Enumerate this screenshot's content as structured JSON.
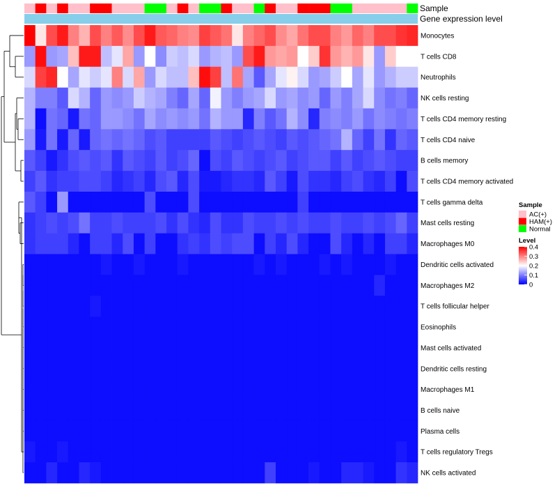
{
  "chart_data": {
    "type": "heatmap",
    "annotation_labels": [
      "Sample",
      "Gene expression level"
    ],
    "rows": [
      "Monocytes",
      "T cells CD8",
      "Neutrophils",
      "NK cells resting",
      "T cells CD4 memory resting",
      "T cells CD4 naive",
      "B cells memory",
      "T cells CD4 memory activated",
      "T cells gamma delta",
      "Mast cells resting",
      "Macrophages M0",
      "Dendritic cells activated",
      "Macrophages M2",
      "T cells follicular helper",
      "Eosinophils",
      "Mast cells activated",
      "Dendritic cells resting",
      "Macrophages M1",
      "B cells naive",
      "Plasma cells",
      "T cells regulatory  Tregs",
      "NK cells activated"
    ],
    "sample_groups": [
      "AC(+)",
      "HAM(+)",
      "AC(+)",
      "HAM(+)",
      "AC(+)",
      "AC(+)",
      "HAM(+)",
      "HAM(+)",
      "AC(+)",
      "AC(+)",
      "AC(+)",
      "Normal",
      "Normal",
      "AC(+)",
      "HAM(+)",
      "AC(+)",
      "Normal",
      "Normal",
      "HAM(+)",
      "AC(+)",
      "AC(+)",
      "Normal",
      "HAM(+)",
      "AC(+)",
      "AC(+)",
      "HAM(+)",
      "HAM(+)",
      "HAM(+)",
      "Normal",
      "Normal",
      "AC(+)",
      "AC(+)",
      "AC(+)",
      "AC(+)",
      "AC(+)",
      "Normal"
    ],
    "values": [
      [
        0.4,
        0.22,
        0.34,
        0.38,
        0.3,
        0.26,
        0.34,
        0.3,
        0.33,
        0.29,
        0.34,
        0.38,
        0.33,
        0.32,
        0.3,
        0.29,
        0.35,
        0.33,
        0.31,
        0.22,
        0.3,
        0.32,
        0.34,
        0.29,
        0.27,
        0.31,
        0.34,
        0.34,
        0.3,
        0.28,
        0.32,
        0.3,
        0.34,
        0.34,
        0.36,
        0.37
      ],
      [
        0.12,
        0.39,
        0.12,
        0.13,
        0.25,
        0.38,
        0.38,
        0.15,
        0.18,
        0.27,
        0.12,
        0.2,
        0.11,
        0.16,
        0.15,
        0.17,
        0.12,
        0.14,
        0.15,
        0.12,
        0.34,
        0.38,
        0.28,
        0.27,
        0.28,
        0.2,
        0.24,
        0.36,
        0.28,
        0.26,
        0.28,
        0.22,
        0.12,
        0.24,
        0.2,
        0.2
      ],
      [
        0.17,
        0.35,
        0.37,
        0.2,
        0.13,
        0.18,
        0.16,
        0.18,
        0.3,
        0.17,
        0.27,
        0.12,
        0.17,
        0.15,
        0.15,
        0.25,
        0.39,
        0.35,
        0.15,
        0.31,
        0.13,
        0.07,
        0.13,
        0.18,
        0.21,
        0.17,
        0.12,
        0.13,
        0.16,
        0.2,
        0.13,
        0.18,
        0.12,
        0.14,
        0.16,
        0.16
      ],
      [
        0.14,
        0.1,
        0.1,
        0.07,
        0.17,
        0.14,
        0.08,
        0.12,
        0.11,
        0.12,
        0.16,
        0.14,
        0.13,
        0.1,
        0.08,
        0.13,
        0.08,
        0.19,
        0.12,
        0.1,
        0.12,
        0.13,
        0.17,
        0.12,
        0.13,
        0.11,
        0.12,
        0.08,
        0.12,
        0.1,
        0.13,
        0.17,
        0.11,
        0.09,
        0.1,
        0.08
      ],
      [
        0.14,
        0.01,
        0.09,
        0.08,
        0.02,
        0.09,
        0.08,
        0.12,
        0.12,
        0.11,
        0.09,
        0.13,
        0.11,
        0.12,
        0.11,
        0.12,
        0.09,
        0.14,
        0.12,
        0.12,
        0.03,
        0.1,
        0.07,
        0.09,
        0.14,
        0.11,
        0.03,
        0.1,
        0.11,
        0.1,
        0.12,
        0.09,
        0.11,
        0.1,
        0.09,
        0.1
      ],
      [
        0.12,
        0.02,
        0.09,
        0.02,
        0.08,
        0.02,
        0.08,
        0.09,
        0.08,
        0.09,
        0.08,
        0.06,
        0.07,
        0.05,
        0.05,
        0.05,
        0.05,
        0.07,
        0.06,
        0.05,
        0.06,
        0.07,
        0.06,
        0.05,
        0.07,
        0.06,
        0.07,
        0.08,
        0.09,
        0.14,
        0.08,
        0.05,
        0.09,
        0.04,
        0.08,
        0.07
      ],
      [
        0.07,
        0.05,
        0.02,
        0.04,
        0.06,
        0.07,
        0.06,
        0.07,
        0.04,
        0.07,
        0.06,
        0.05,
        0.07,
        0.05,
        0.06,
        0.08,
        0.01,
        0.06,
        0.05,
        0.07,
        0.06,
        0.05,
        0.06,
        0.07,
        0.05,
        0.06,
        0.07,
        0.07,
        0.05,
        0.07,
        0.05,
        0.06,
        0.07,
        0.06,
        0.05,
        0.05
      ],
      [
        0.05,
        0.07,
        0.04,
        0.05,
        0.05,
        0.06,
        0.06,
        0.05,
        0.03,
        0.04,
        0.05,
        0.03,
        0.06,
        0.07,
        0.03,
        0.06,
        0.02,
        0.02,
        0.03,
        0.04,
        0.04,
        0.03,
        0.07,
        0.05,
        0.02,
        0.06,
        0.04,
        0.04,
        0.03,
        0.05,
        0.06,
        0.04,
        0.03,
        0.05,
        0.01,
        0.06
      ],
      [
        0.07,
        0.05,
        0.01,
        0.12,
        0.01,
        0.01,
        0.01,
        0.01,
        0.01,
        0.01,
        0.01,
        0.06,
        0.01,
        0.01,
        0.01,
        0.06,
        0.01,
        0.01,
        0.01,
        0.01,
        0.01,
        0.01,
        0.01,
        0.01,
        0.01,
        0.05,
        0.01,
        0.01,
        0.01,
        0.01,
        0.01,
        0.01,
        0.01,
        0.01,
        0.01,
        0.01
      ],
      [
        0.04,
        0.05,
        0.06,
        0.05,
        0.06,
        0.09,
        0.05,
        0.05,
        0.06,
        0.05,
        0.05,
        0.05,
        0.06,
        0.04,
        0.06,
        0.04,
        0.03,
        0.06,
        0.04,
        0.04,
        0.06,
        0.05,
        0.05,
        0.06,
        0.05,
        0.06,
        0.05,
        0.05,
        0.06,
        0.05,
        0.05,
        0.06,
        0.05,
        0.06,
        0.08,
        0.05
      ],
      [
        0.04,
        0.05,
        0.05,
        0.05,
        0.03,
        0.01,
        0.05,
        0.05,
        0.03,
        0.06,
        0.01,
        0.05,
        0.01,
        0.01,
        0.04,
        0.05,
        0.04,
        0.06,
        0.05,
        0.06,
        0.06,
        0.01,
        0.05,
        0.03,
        0.06,
        0.03,
        0.01,
        0.01,
        0.06,
        0.03,
        0.01,
        0.03,
        0.01,
        0.05,
        0.05,
        0.03
      ],
      [
        0.01,
        0.01,
        0.01,
        0.01,
        0.01,
        0.01,
        0.01,
        0.02,
        0.01,
        0.01,
        0.02,
        0.01,
        0.01,
        0.01,
        0.02,
        0.01,
        0.01,
        0.01,
        0.01,
        0.01,
        0.01,
        0.02,
        0.01,
        0.02,
        0.01,
        0.01,
        0.01,
        0.02,
        0.01,
        0.02,
        0.01,
        0.01,
        0.01,
        0.02,
        0.01,
        0.01
      ],
      [
        0.01,
        0.01,
        0.01,
        0.01,
        0.01,
        0.01,
        0.01,
        0.01,
        0.01,
        0.01,
        0.01,
        0.01,
        0.01,
        0.01,
        0.01,
        0.01,
        0.01,
        0.01,
        0.01,
        0.01,
        0.01,
        0.01,
        0.01,
        0.01,
        0.01,
        0.01,
        0.01,
        0.01,
        0.01,
        0.01,
        0.01,
        0.01,
        0.03,
        0.01,
        0.01,
        0.01
      ],
      [
        0.01,
        0.01,
        0.01,
        0.01,
        0.01,
        0.01,
        0.02,
        0.01,
        0.01,
        0.01,
        0.01,
        0.01,
        0.01,
        0.01,
        0.01,
        0.01,
        0.01,
        0.01,
        0.01,
        0.01,
        0.01,
        0.01,
        0.01,
        0.01,
        0.01,
        0.01,
        0.01,
        0.01,
        0.01,
        0.01,
        0.01,
        0.01,
        0.01,
        0.01,
        0.01,
        0.01
      ],
      [
        0.01,
        0.01,
        0.01,
        0.01,
        0.01,
        0.01,
        0.01,
        0.01,
        0.01,
        0.01,
        0.01,
        0.01,
        0.01,
        0.01,
        0.01,
        0.01,
        0.01,
        0.01,
        0.01,
        0.01,
        0.01,
        0.01,
        0.01,
        0.01,
        0.01,
        0.01,
        0.01,
        0.01,
        0.01,
        0.01,
        0.01,
        0.01,
        0.01,
        0.01,
        0.01,
        0.01
      ],
      [
        0.01,
        0.01,
        0.01,
        0.01,
        0.01,
        0.01,
        0.01,
        0.01,
        0.01,
        0.01,
        0.01,
        0.01,
        0.01,
        0.01,
        0.01,
        0.01,
        0.01,
        0.01,
        0.01,
        0.01,
        0.01,
        0.01,
        0.01,
        0.01,
        0.01,
        0.01,
        0.01,
        0.01,
        0.01,
        0.01,
        0.01,
        0.01,
        0.01,
        0.01,
        0.01,
        0.01
      ],
      [
        0.01,
        0.01,
        0.01,
        0.01,
        0.01,
        0.01,
        0.01,
        0.01,
        0.01,
        0.01,
        0.01,
        0.01,
        0.01,
        0.01,
        0.01,
        0.01,
        0.01,
        0.01,
        0.01,
        0.01,
        0.01,
        0.01,
        0.01,
        0.01,
        0.01,
        0.01,
        0.01,
        0.01,
        0.01,
        0.01,
        0.01,
        0.01,
        0.01,
        0.01,
        0.01,
        0.01
      ],
      [
        0.01,
        0.01,
        0.01,
        0.01,
        0.01,
        0.01,
        0.01,
        0.01,
        0.01,
        0.01,
        0.01,
        0.01,
        0.01,
        0.01,
        0.01,
        0.01,
        0.01,
        0.01,
        0.01,
        0.01,
        0.01,
        0.01,
        0.01,
        0.01,
        0.01,
        0.01,
        0.01,
        0.01,
        0.01,
        0.01,
        0.01,
        0.01,
        0.01,
        0.01,
        0.01,
        0.01
      ],
      [
        0.01,
        0.01,
        0.01,
        0.01,
        0.01,
        0.01,
        0.01,
        0.01,
        0.01,
        0.01,
        0.01,
        0.01,
        0.01,
        0.01,
        0.01,
        0.01,
        0.01,
        0.01,
        0.01,
        0.01,
        0.01,
        0.01,
        0.01,
        0.01,
        0.01,
        0.01,
        0.01,
        0.01,
        0.01,
        0.01,
        0.01,
        0.01,
        0.01,
        0.01,
        0.01,
        0.01
      ],
      [
        0.01,
        0.01,
        0.01,
        0.01,
        0.01,
        0.01,
        0.01,
        0.01,
        0.01,
        0.01,
        0.01,
        0.01,
        0.01,
        0.01,
        0.01,
        0.01,
        0.01,
        0.01,
        0.01,
        0.01,
        0.01,
        0.01,
        0.01,
        0.01,
        0.01,
        0.01,
        0.01,
        0.01,
        0.01,
        0.01,
        0.01,
        0.01,
        0.01,
        0.01,
        0.01,
        0.01
      ],
      [
        0.02,
        0.01,
        0.01,
        0.02,
        0.01,
        0.01,
        0.01,
        0.01,
        0.01,
        0.01,
        0.01,
        0.01,
        0.01,
        0.01,
        0.01,
        0.01,
        0.01,
        0.01,
        0.01,
        0.01,
        0.01,
        0.01,
        0.01,
        0.01,
        0.01,
        0.01,
        0.01,
        0.01,
        0.01,
        0.01,
        0.01,
        0.01,
        0.01,
        0.01,
        0.02,
        0.01
      ],
      [
        0.01,
        0.01,
        0.03,
        0.01,
        0.01,
        0.03,
        0.02,
        0.01,
        0.01,
        0.01,
        0.01,
        0.01,
        0.01,
        0.01,
        0.01,
        0.01,
        0.01,
        0.01,
        0.01,
        0.01,
        0.01,
        0.01,
        0.05,
        0.01,
        0.01,
        0.01,
        0.02,
        0.01,
        0.01,
        0.03,
        0.03,
        0.02,
        0.01,
        0.01,
        0.04,
        0.03
      ]
    ],
    "legend": {
      "sample_title": "Sample",
      "sample_items": [
        {
          "label": "AC(+)",
          "color": "#FFC0CB"
        },
        {
          "label": "HAM(+)",
          "color": "#FF0000"
        },
        {
          "label": "Normal",
          "color": "#00FF00"
        }
      ],
      "level_title": "Level",
      "level_ticks": [
        "0.4",
        "0.3",
        "0.2",
        "0.1",
        "0"
      ],
      "level_range": [
        0,
        0.4
      ]
    },
    "colors": {
      "low": "#0000FF",
      "mid": "#FFFFFF",
      "high": "#FF0000",
      "expression_bar": "#87CEEB"
    }
  }
}
